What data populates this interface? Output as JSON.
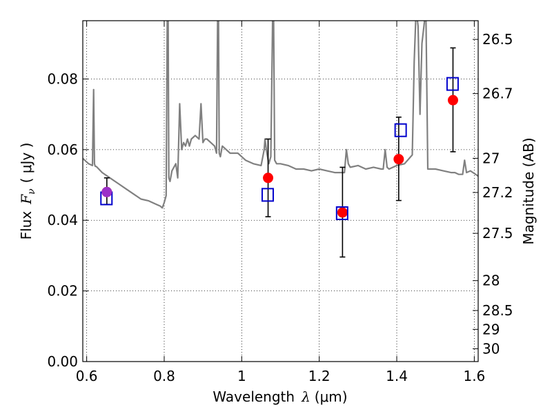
{
  "chart_data": {
    "type": "scatter",
    "title": "",
    "xlabel": "Wavelength",
    "xlabel_symbol": "λ",
    "xlabel_unit": "(μm)",
    "ylabel": "Flux",
    "ylabel_symbol": "F",
    "ylabel_symbol_sub": "ν",
    "ylabel_unit": "( μJy )",
    "y2label": "Magnitude (AB)",
    "xlim": [
      0.59,
      1.61
    ],
    "ylim": [
      0.0,
      0.0965
    ],
    "grid": true,
    "xticks": [
      {
        "value": 0.6,
        "label": "0.6"
      },
      {
        "value": 0.8,
        "label": "0.8"
      },
      {
        "value": 1.0,
        "label": "1"
      },
      {
        "value": 1.2,
        "label": "1.2"
      },
      {
        "value": 1.4,
        "label": "1.4"
      },
      {
        "value": 1.6,
        "label": "1.6"
      }
    ],
    "yticks": [
      {
        "value": 0.0,
        "label": "0.00"
      },
      {
        "value": 0.02,
        "label": "0.02"
      },
      {
        "value": 0.04,
        "label": "0.04"
      },
      {
        "value": 0.06,
        "label": "0.06"
      },
      {
        "value": 0.08,
        "label": "0.08"
      }
    ],
    "y2ticks": [
      {
        "value": 26.5,
        "label": "26.5"
      },
      {
        "value": 26.7,
        "label": "26.7"
      },
      {
        "value": 27.0,
        "label": "27"
      },
      {
        "value": 27.2,
        "label": "27.2"
      },
      {
        "value": 27.5,
        "label": "27.5"
      },
      {
        "value": 28.0,
        "label": "28"
      },
      {
        "value": 28.5,
        "label": "28.5"
      },
      {
        "value": 29.0,
        "label": "29"
      },
      {
        "value": 30.0,
        "label": "30"
      }
    ],
    "series": [
      {
        "kind": "line",
        "color": "#808080",
        "x": [
          0.59,
          0.605,
          0.615,
          0.618,
          0.62,
          0.622,
          0.625,
          0.64,
          0.66,
          0.68,
          0.7,
          0.72,
          0.74,
          0.76,
          0.78,
          0.79,
          0.795,
          0.8,
          0.805,
          0.808,
          0.81,
          0.812,
          0.815,
          0.82,
          0.83,
          0.835,
          0.84,
          0.845,
          0.85,
          0.855,
          0.86,
          0.865,
          0.87,
          0.88,
          0.89,
          0.895,
          0.9,
          0.905,
          0.91,
          0.92,
          0.93,
          0.935,
          0.938,
          0.94,
          0.942,
          0.945,
          0.95,
          0.97,
          0.99,
          1.0,
          1.01,
          1.03,
          1.05,
          1.058,
          1.06,
          1.065,
          1.07,
          1.075,
          1.08,
          1.082,
          1.085,
          1.09,
          1.1,
          1.12,
          1.14,
          1.16,
          1.18,
          1.2,
          1.22,
          1.24,
          1.26,
          1.265,
          1.27,
          1.275,
          1.28,
          1.3,
          1.32,
          1.34,
          1.36,
          1.36,
          1.365,
          1.37,
          1.375,
          1.38,
          1.4,
          1.42,
          1.44,
          1.445,
          1.45,
          1.455,
          1.46,
          1.465,
          1.47,
          1.475,
          1.48,
          1.5,
          1.52,
          1.54,
          1.55,
          1.56,
          1.57,
          1.575,
          1.58,
          1.59,
          1.61
        ],
        "y": [
          0.0575,
          0.056,
          0.0555,
          0.077,
          0.056,
          0.0553,
          0.0552,
          0.0535,
          0.052,
          0.0505,
          0.049,
          0.0475,
          0.046,
          0.0455,
          0.0445,
          0.044,
          0.0435,
          0.045,
          0.047,
          0.1,
          0.1,
          0.052,
          0.051,
          0.054,
          0.056,
          0.052,
          0.073,
          0.06,
          0.062,
          0.061,
          0.063,
          0.061,
          0.063,
          0.064,
          0.063,
          0.073,
          0.062,
          0.063,
          0.063,
          0.062,
          0.061,
          0.059,
          0.1,
          0.1,
          0.059,
          0.058,
          0.061,
          0.059,
          0.059,
          0.058,
          0.057,
          0.056,
          0.0555,
          0.06,
          0.063,
          0.059,
          0.056,
          0.058,
          0.1,
          0.1,
          0.057,
          0.056,
          0.056,
          0.0555,
          0.0545,
          0.0545,
          0.054,
          0.0545,
          0.054,
          0.0535,
          0.0535,
          0.0535,
          0.06,
          0.056,
          0.055,
          0.0555,
          0.0545,
          0.055,
          0.0545,
          0.0545,
          0.0545,
          0.06,
          0.055,
          0.0545,
          0.0555,
          0.056,
          0.0585,
          0.085,
          0.1,
          0.095,
          0.07,
          0.09,
          0.095,
          0.1,
          0.0545,
          0.0545,
          0.054,
          0.0535,
          0.0535,
          0.053,
          0.053,
          0.057,
          0.0535,
          0.054,
          0.0525
        ]
      },
      {
        "kind": "errorbar",
        "name": "",
        "color": "#000000",
        "points": [
          {
            "x": 0.652,
            "y": 0.0483,
            "ylo": 0.0445,
            "yhi": 0.052
          },
          {
            "x": 1.068,
            "y": 0.052,
            "ylo": 0.041,
            "yhi": 0.063
          },
          {
            "x": 1.26,
            "y": 0.0422,
            "ylo": 0.0296,
            "yhi": 0.055
          },
          {
            "x": 1.405,
            "y": 0.0573,
            "ylo": 0.0456,
            "yhi": 0.0692
          },
          {
            "x": 1.545,
            "y": 0.074,
            "ylo": 0.0594,
            "yhi": 0.0888
          }
        ]
      },
      {
        "kind": "scatter",
        "marker": "circle",
        "name": "",
        "color": "#ff0000",
        "x": [
          0.652,
          1.068,
          1.26,
          1.405,
          1.545
        ],
        "y": [
          0.048,
          0.052,
          0.0422,
          0.0573,
          0.074
        ]
      },
      {
        "kind": "scatter",
        "marker": "square-open",
        "name": "",
        "color": "#0000cc",
        "x": [
          0.651,
          1.067,
          1.259,
          1.41,
          1.544
        ],
        "y": [
          0.0462,
          0.0472,
          0.042,
          0.0655,
          0.0786
        ]
      }
    ],
    "highlight_point": {
      "x": 0.652,
      "y": 0.048,
      "color": "#9b30c8"
    }
  }
}
